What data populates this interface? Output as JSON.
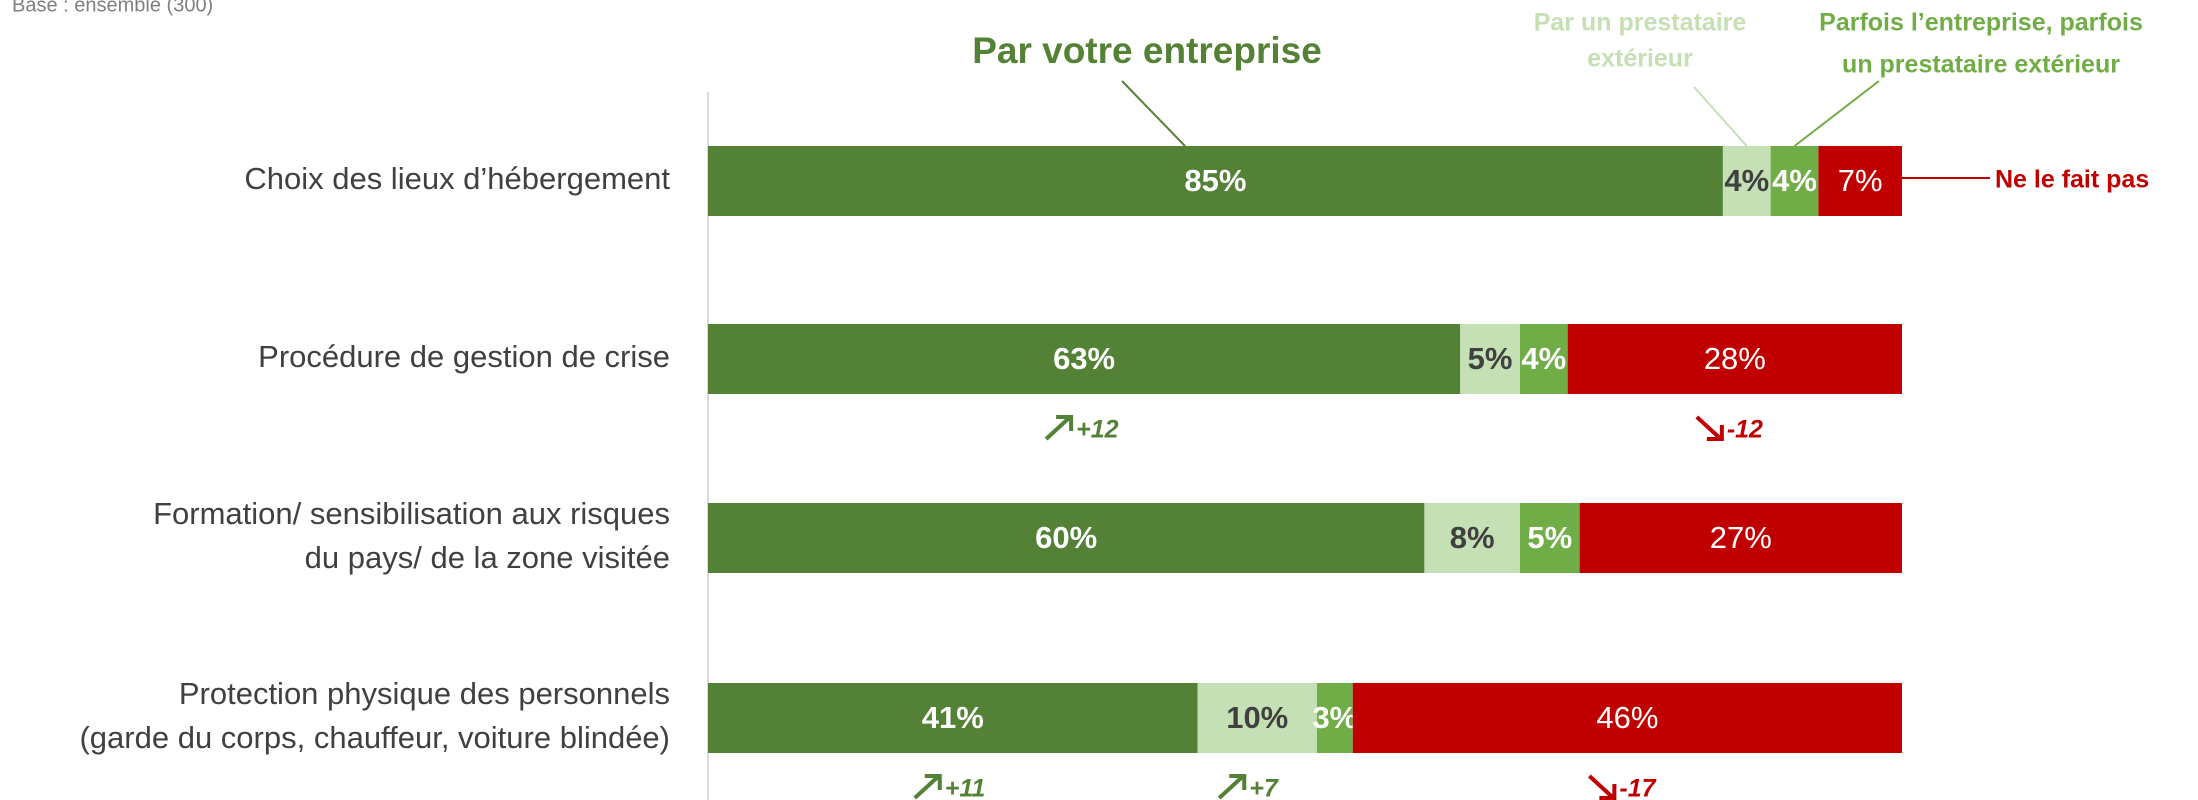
{
  "chart_data": {
    "type": "bar",
    "orientation": "horizontal",
    "stacked": true,
    "subtitle": "Base : ensemble (300)",
    "categories": [
      [
        "Choix des lieux d’hébergement"
      ],
      [
        "Procédure de gestion de crise"
      ],
      [
        "Formation/ sensibilisation aux risques",
        "du pays/ de la zone visitée"
      ],
      [
        "Protection physique des personnels",
        "(garde du corps, chauffeur, voiture blindée)"
      ]
    ],
    "xlim": [
      0,
      100
    ],
    "series": [
      {
        "name": [
          "Par votre entreprise"
        ],
        "color": "#538135",
        "values": [
          85,
          63,
          60,
          41
        ],
        "value_labels": [
          "85%",
          "63%",
          "60%",
          "41%"
        ],
        "changes": [
          null,
          "+12",
          null,
          "+11"
        ]
      },
      {
        "name": [
          "Par un prestataire",
          "extérieur"
        ],
        "color": "#c5e0b4",
        "values": [
          4,
          5,
          8,
          10
        ],
        "value_labels": [
          "4%",
          "5%",
          "8%",
          "10%"
        ],
        "changes": [
          null,
          null,
          null,
          "+7"
        ]
      },
      {
        "name": [
          "Parfois l’entreprise, parfois",
          "un prestataire extérieur"
        ],
        "color": "#70ad47",
        "values": [
          4,
          4,
          5,
          3
        ],
        "value_labels": [
          "4%",
          "4%",
          "5%",
          "3%"
        ],
        "changes": [
          null,
          null,
          null,
          null
        ]
      },
      {
        "name": [
          "Ne le fait pas"
        ],
        "color": "#c00000",
        "values": [
          7,
          28,
          27,
          46
        ],
        "value_labels": [
          "7%",
          "28%",
          "27%",
          "46%"
        ],
        "changes": [
          null,
          "-12",
          null,
          "-17"
        ]
      }
    ]
  }
}
